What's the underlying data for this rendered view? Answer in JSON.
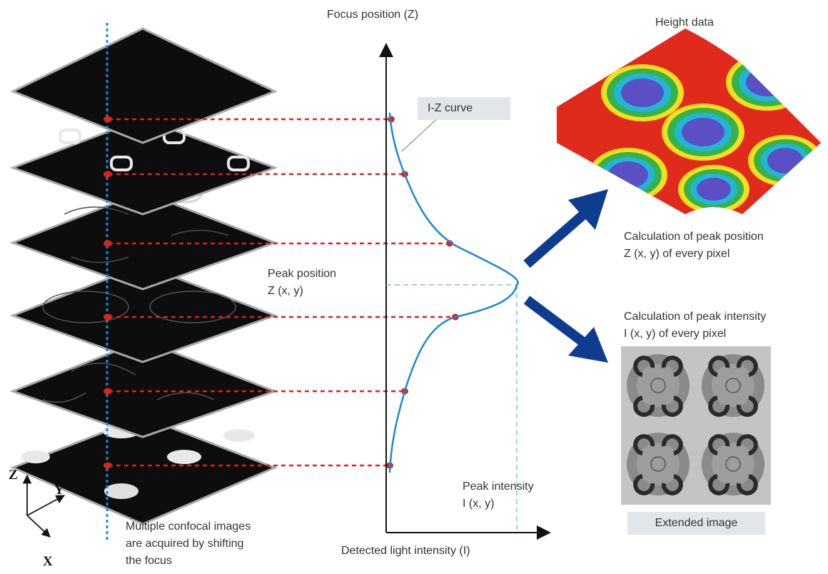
{
  "labels": {
    "focus_axis": "Focus position (Z)",
    "intensity_axis": "Detected light intensity (I)",
    "iz_curve": "I-Z curve",
    "peak_position_1": "Peak position",
    "peak_position_2": "Z (x, y)",
    "peak_intensity_1": "Peak intensity",
    "peak_intensity_2": "I (x, y)",
    "height_data": "Height data",
    "calc_position_1": "Calculation of peak position",
    "calc_position_2": "Z (x, y) of every pixel",
    "calc_intensity_1": "Calculation of peak intensity",
    "calc_intensity_2": "I (x, y) of every pixel",
    "extended_image": "Extended image",
    "caption_1": "Multiple confocal images",
    "caption_2": "are acquired by shifting",
    "caption_3": "the focus",
    "xyz_z": "Z",
    "xyz_y": "Y",
    "xyz_x": "X"
  },
  "colors": {
    "curve": "#1a8ad4",
    "guide_red": "#d9231f",
    "guide_blue": "#6fc3e8",
    "arrow_navy": "#0e3d8f",
    "slice_fill": "#0d0d0d"
  }
}
